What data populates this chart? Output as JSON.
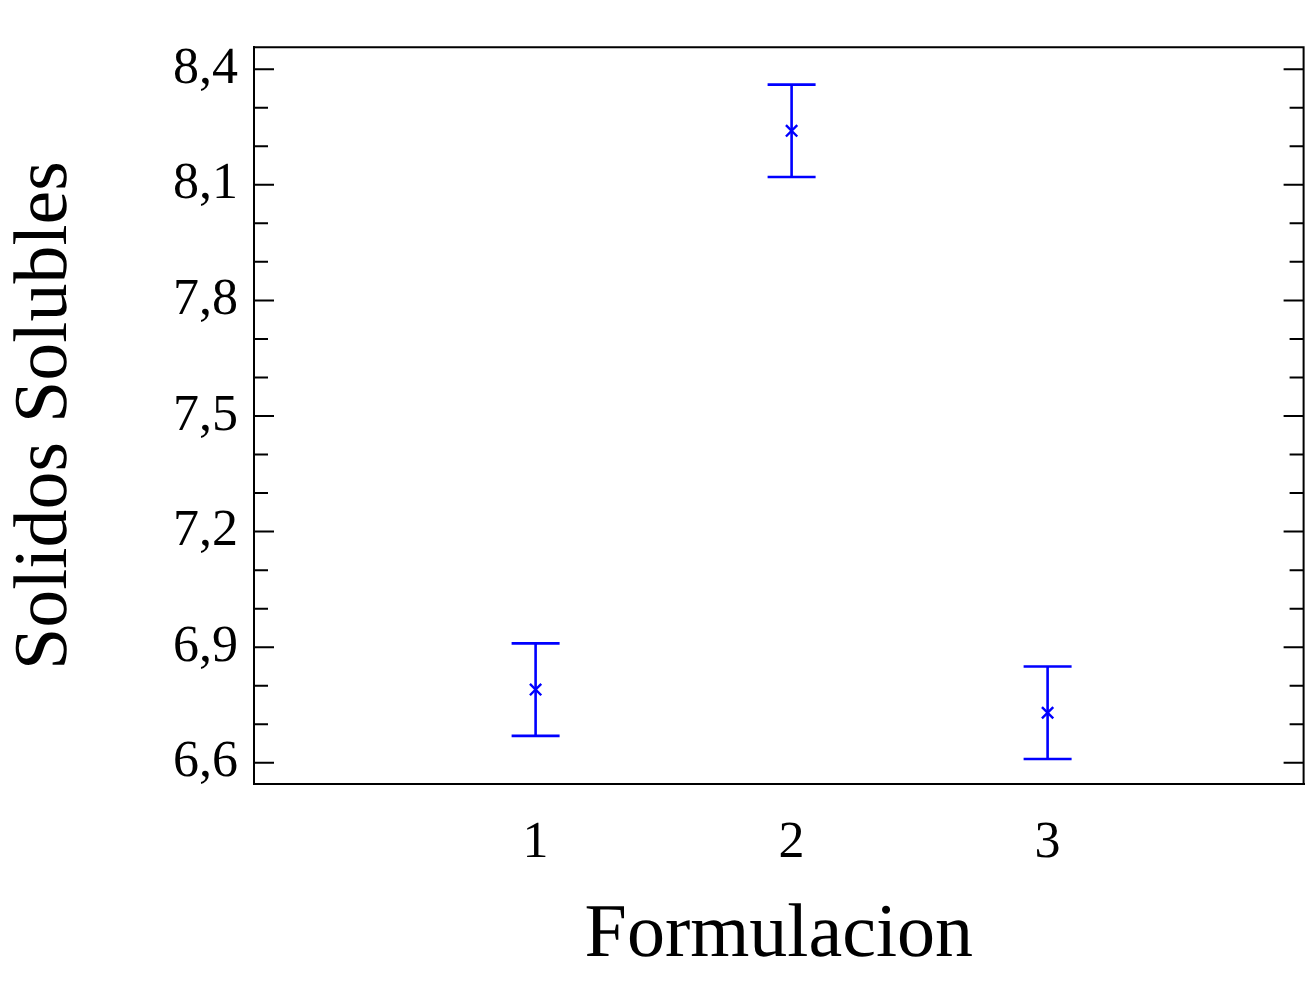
{
  "chart_data": {
    "type": "scatter",
    "xlabel": "Formulacion",
    "ylabel": "Solidos Solubles",
    "x": [
      1,
      2,
      3
    ],
    "series": [
      {
        "color": "#0000ff",
        "values": [
          6.79,
          8.24,
          6.73
        ],
        "errors": [
          0.12,
          0.12,
          0.12
        ]
      }
    ],
    "xlim": [
      -0.1,
      4.0
    ],
    "xticks": [
      1,
      2,
      3
    ],
    "ylim": [
      6.545,
      8.457
    ],
    "yticks": [
      {
        "value": 6.6,
        "label": "6,6"
      },
      {
        "value": 6.7,
        "label": null
      },
      {
        "value": 6.8,
        "label": null
      },
      {
        "value": 6.9,
        "label": "6,9"
      },
      {
        "value": 7.0,
        "label": null
      },
      {
        "value": 7.1,
        "label": null
      },
      {
        "value": 7.2,
        "label": "7,2"
      },
      {
        "value": 7.3,
        "label": null
      },
      {
        "value": 7.4,
        "label": null
      },
      {
        "value": 7.5,
        "label": "7,5"
      },
      {
        "value": 7.6,
        "label": null
      },
      {
        "value": 7.7,
        "label": null
      },
      {
        "value": 7.8,
        "label": "7,8"
      },
      {
        "value": 7.9,
        "label": null
      },
      {
        "value": 8.0,
        "label": null
      },
      {
        "value": 8.1,
        "label": "8,1"
      },
      {
        "value": 8.2,
        "label": null
      },
      {
        "value": 8.3,
        "label": null
      },
      {
        "value": 8.4,
        "label": "8,4"
      }
    ],
    "grid": false,
    "legend": false,
    "marker": "cross"
  }
}
